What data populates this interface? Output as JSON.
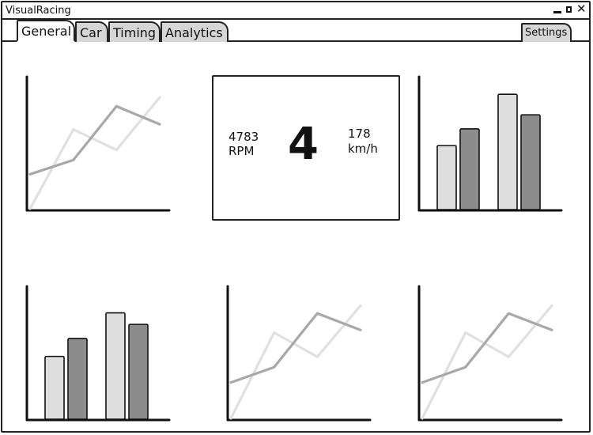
{
  "window": {
    "title": "VisualRacing",
    "controls": {
      "minimize_icon": "minimize-icon",
      "maximize_icon": "maximize-icon",
      "close_icon": "close-icon",
      "close_glyph": "✕"
    }
  },
  "tabs": [
    {
      "label": "General",
      "active": true
    },
    {
      "label": "Car",
      "active": false
    },
    {
      "label": "Timing",
      "active": false
    },
    {
      "label": "Analytics",
      "active": false
    }
  ],
  "settings_label": "Settings",
  "gauge": {
    "rpm_value": "4783",
    "rpm_unit": "RPM",
    "gear": "4",
    "speed_value": "178",
    "speed_unit": "km/h"
  },
  "colors": {
    "axis": "#111111",
    "series_light": "#dedede",
    "series_dark": "#8c8c8c",
    "line_light": "#e0e0e0",
    "line_dark": "#a8a8a8"
  },
  "chart_data": [
    {
      "type": "line",
      "position": "top-left",
      "series": [
        {
          "values": [
            0.0,
            0.62,
            0.46,
            0.87
          ]
        },
        {
          "values": [
            0.27,
            0.38,
            0.8,
            0.66
          ]
        }
      ]
    },
    {
      "type": "bar",
      "position": "top-right",
      "series": [
        {
          "values": [
            0.5,
            0.9
          ]
        },
        {
          "values": [
            0.63,
            0.74
          ]
        }
      ]
    },
    {
      "type": "bar",
      "position": "bottom-left",
      "series": [
        {
          "values": [
            0.49,
            0.83
          ]
        },
        {
          "values": [
            0.63,
            0.74
          ]
        }
      ]
    },
    {
      "type": "line",
      "position": "bottom-center",
      "series": [
        {
          "values": [
            0.0,
            0.67,
            0.48,
            0.88
          ]
        },
        {
          "values": [
            0.28,
            0.4,
            0.82,
            0.69
          ]
        }
      ]
    },
    {
      "type": "line",
      "position": "bottom-right",
      "series": [
        {
          "values": [
            0.0,
            0.67,
            0.48,
            0.88
          ]
        },
        {
          "values": [
            0.28,
            0.4,
            0.82,
            0.69
          ]
        }
      ]
    }
  ]
}
